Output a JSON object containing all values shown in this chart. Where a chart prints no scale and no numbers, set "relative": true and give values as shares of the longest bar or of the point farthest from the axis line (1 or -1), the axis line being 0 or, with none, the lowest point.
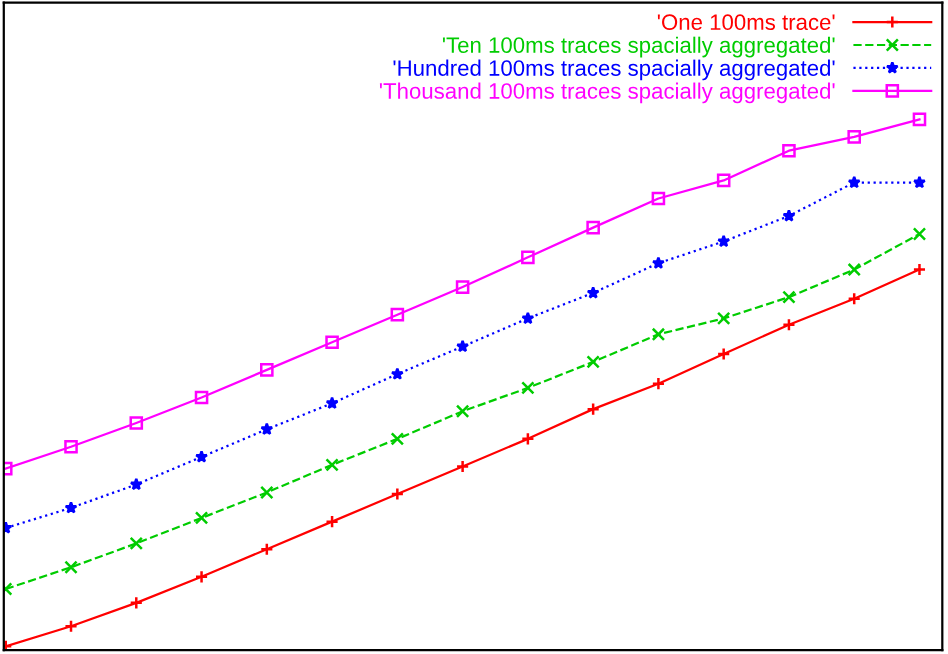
{
  "chart_data": {
    "type": "line",
    "relative": true,
    "legend": "top right",
    "categories": [
      null,
      null,
      null,
      null,
      null,
      null,
      null,
      null,
      null,
      null,
      null,
      null,
      null,
      null,
      null
    ],
    "series": [
      {
        "name": "'One 100ms trace'",
        "color": "#ff0000",
        "marker": "plus",
        "line_style": "solid",
        "values": [
          0.007,
          0.045,
          0.089,
          0.138,
          0.19,
          0.242,
          0.294,
          0.346,
          0.398,
          0.454,
          0.502,
          0.558,
          0.613,
          0.662,
          0.717
        ]
      },
      {
        "name": "'Ten 100ms traces spacially aggregated'",
        "color": "#00cc00",
        "marker": "cross",
        "line_style": "dashed",
        "values": [
          0.115,
          0.156,
          0.201,
          0.249,
          0.297,
          0.349,
          0.398,
          0.45,
          0.494,
          0.543,
          0.595,
          0.625,
          0.665,
          0.717,
          0.784
        ]
      },
      {
        "name": "'Hundred 100ms traces spacially aggregated'",
        "color": "#0000ff",
        "marker": "star",
        "line_style": "dotted",
        "values": [
          0.23,
          0.268,
          0.312,
          0.364,
          0.416,
          0.465,
          0.52,
          0.572,
          0.625,
          0.673,
          0.729,
          0.77,
          0.818,
          0.881,
          0.881
        ]
      },
      {
        "name": "'Thousand 100ms traces spacially aggregated'",
        "color": "#ff00ff",
        "marker": "square",
        "line_style": "solid",
        "values": [
          0.342,
          0.383,
          0.428,
          0.476,
          0.528,
          0.58,
          0.632,
          0.684,
          0.74,
          0.796,
          0.851,
          0.885,
          0.941,
          0.967,
          1
        ]
      }
    ]
  }
}
